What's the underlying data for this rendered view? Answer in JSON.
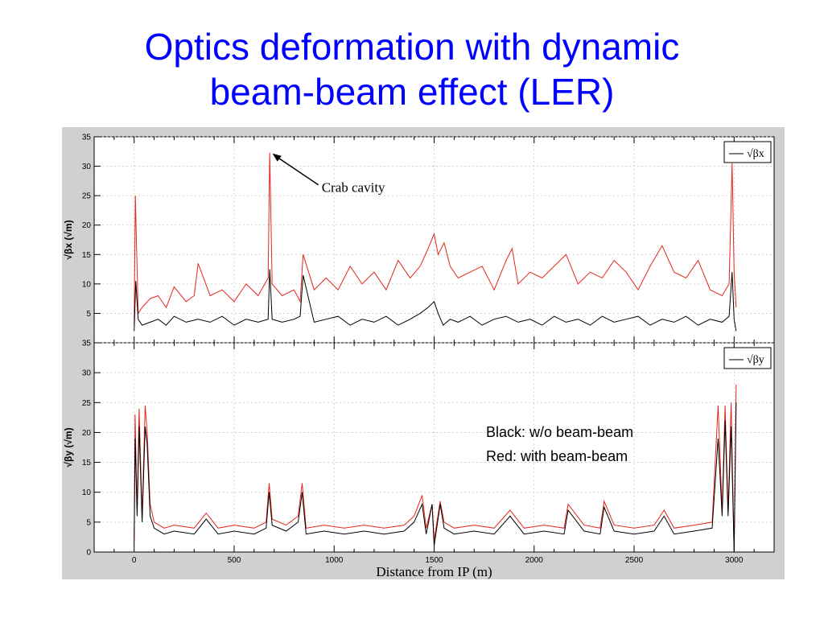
{
  "title": {
    "line1": "Optics deformation with dynamic",
    "line2": "beam-beam effect (LER)"
  },
  "legend_notes": {
    "black": "Black: w/o beam-beam",
    "red": "Red: with beam-beam"
  },
  "colors": {
    "title": "#0000ff",
    "series_without_bb": "#000000",
    "series_with_bb": "#e3261c",
    "figure_background": "#d0d0d0",
    "plot_background": "#ffffff"
  },
  "chart_data": [
    {
      "type": "line",
      "ylabel": "√βx (√m)",
      "legend": "√βx",
      "legend_position": "top-right",
      "xlim": [
        -200,
        3200
      ],
      "ylim": [
        0,
        35
      ],
      "yticks": [
        5,
        10,
        15,
        20,
        25,
        30,
        35
      ],
      "grid": true,
      "annotation": {
        "text": "Crab cavity",
        "x": 680,
        "y": 32.3
      },
      "series": [
        {
          "name": "Black: w/o beam-beam",
          "color": "#000000",
          "x": [
            0,
            8,
            20,
            40,
            80,
            120,
            160,
            200,
            260,
            320,
            380,
            440,
            500,
            560,
            620,
            670,
            678,
            690,
            740,
            800,
            830,
            845,
            900,
            960,
            1020,
            1080,
            1140,
            1200,
            1260,
            1320,
            1380,
            1430,
            1470,
            1500,
            1520,
            1545,
            1580,
            1620,
            1680,
            1740,
            1800,
            1860,
            1920,
            1980,
            2040,
            2100,
            2160,
            2220,
            2280,
            2340,
            2400,
            2460,
            2520,
            2580,
            2640,
            2700,
            2760,
            2820,
            2880,
            2940,
            2975,
            2990,
            3000,
            3010
          ],
          "y": [
            2,
            10.5,
            4,
            3,
            3.5,
            4,
            3,
            4.5,
            3.5,
            4,
            3.5,
            4.5,
            3,
            4,
            3.5,
            4,
            12.5,
            4,
            3.5,
            4,
            4.5,
            11.5,
            3.5,
            4,
            4.5,
            3,
            4,
            3.5,
            4.5,
            3,
            4,
            5,
            6,
            7,
            5,
            3,
            4,
            3.5,
            4.5,
            3,
            4,
            4.5,
            3.5,
            4,
            3,
            4.5,
            3.5,
            4,
            3,
            4.5,
            3.5,
            4,
            4.5,
            3,
            4,
            3.5,
            4.5,
            3,
            4,
            3.5,
            4.5,
            12,
            4,
            2
          ]
        },
        {
          "name": "Red: with beam-beam",
          "color": "#e3261c",
          "x": [
            0,
            6,
            20,
            40,
            80,
            120,
            160,
            200,
            260,
            300,
            320,
            380,
            440,
            500,
            560,
            620,
            670,
            678,
            690,
            740,
            800,
            830,
            845,
            900,
            960,
            1020,
            1080,
            1140,
            1200,
            1260,
            1320,
            1380,
            1430,
            1470,
            1500,
            1520,
            1550,
            1580,
            1620,
            1680,
            1740,
            1800,
            1860,
            1890,
            1920,
            1980,
            2040,
            2100,
            2160,
            2220,
            2280,
            2340,
            2400,
            2460,
            2520,
            2580,
            2640,
            2700,
            2760,
            2820,
            2880,
            2940,
            2975,
            2990,
            3000,
            3010
          ],
          "y": [
            3,
            25,
            5,
            6,
            7.5,
            8,
            6,
            9.5,
            7,
            8,
            13.5,
            8,
            9,
            7,
            10,
            8,
            11,
            32.3,
            10,
            8,
            9,
            7,
            15,
            9,
            11,
            9,
            13,
            10,
            12,
            9,
            14,
            11,
            13,
            16,
            18.5,
            15,
            17,
            13,
            11,
            12,
            13,
            9,
            14,
            16,
            10,
            12,
            11,
            13,
            15,
            10,
            12,
            11,
            14,
            12,
            9,
            13,
            16.5,
            12,
            11,
            14,
            9,
            8,
            10,
            30.5,
            12,
            6
          ]
        }
      ]
    },
    {
      "type": "line",
      "ylabel": "√βy (√m)",
      "legend": "√βy",
      "legend_position": "top-right",
      "xlabel": "Distance from IP (m)",
      "xlim": [
        -200,
        3200
      ],
      "ylim": [
        0,
        35
      ],
      "xticks": [
        0,
        500,
        1000,
        1500,
        2000,
        2500,
        3000
      ],
      "yticks": [
        0,
        5,
        10,
        15,
        20,
        25,
        30,
        35
      ],
      "grid": true,
      "series": [
        {
          "name": "Black: w/o beam-beam",
          "color": "#000000",
          "x": [
            0,
            5,
            15,
            25,
            40,
            55,
            65,
            80,
            100,
            150,
            200,
            300,
            360,
            420,
            500,
            600,
            660,
            675,
            690,
            760,
            820,
            840,
            860,
            950,
            1050,
            1150,
            1250,
            1350,
            1400,
            1440,
            1460,
            1490,
            1500,
            1530,
            1550,
            1600,
            1700,
            1800,
            1880,
            1950,
            2050,
            2150,
            2170,
            2250,
            2330,
            2350,
            2400,
            2500,
            2600,
            2650,
            2700,
            2800,
            2890,
            2920,
            2940,
            2955,
            2970,
            2985,
            3000,
            3010
          ],
          "y": [
            1,
            19,
            6,
            21,
            5,
            21,
            18,
            6,
            4,
            3,
            3.5,
            3,
            5.5,
            3,
            3.5,
            3,
            4,
            10,
            4.5,
            3.5,
            5,
            10,
            3,
            3.5,
            3,
            3.5,
            3,
            3.5,
            5,
            8,
            3,
            8,
            1,
            8,
            4,
            3,
            3.5,
            3,
            6,
            3,
            3.5,
            3,
            7,
            3.5,
            3,
            7.5,
            3.5,
            3,
            3.5,
            6,
            3,
            3.5,
            4,
            19,
            6,
            22,
            6,
            21,
            0,
            25
          ]
        },
        {
          "name": "Red: with beam-beam",
          "color": "#e3261c",
          "x": [
            0,
            5,
            15,
            25,
            40,
            55,
            65,
            80,
            100,
            150,
            200,
            300,
            360,
            420,
            500,
            600,
            660,
            675,
            690,
            760,
            820,
            840,
            860,
            950,
            1050,
            1150,
            1250,
            1350,
            1400,
            1440,
            1460,
            1490,
            1500,
            1530,
            1550,
            1600,
            1700,
            1800,
            1880,
            1950,
            2050,
            2150,
            2170,
            2250,
            2330,
            2350,
            2400,
            2500,
            2600,
            2650,
            2700,
            2800,
            2890,
            2920,
            2940,
            2955,
            2970,
            2985,
            3000,
            3010
          ],
          "y": [
            2,
            23,
            7,
            24,
            6,
            24.5,
            20,
            8,
            5,
            4,
            4.5,
            4,
            6.5,
            4,
            4.5,
            4,
            5,
            11.5,
            5.5,
            4.5,
            6,
            11.5,
            4,
            4.5,
            4,
            4.5,
            4,
            4.5,
            6,
            9.5,
            4,
            8,
            2,
            8.5,
            5,
            4,
            4.5,
            4,
            7,
            4,
            4.5,
            4,
            8,
            4.5,
            4,
            8.5,
            4.5,
            4,
            4.5,
            7,
            4,
            4.5,
            5,
            24.5,
            7,
            24.5,
            7,
            25,
            0,
            28
          ]
        }
      ]
    }
  ]
}
